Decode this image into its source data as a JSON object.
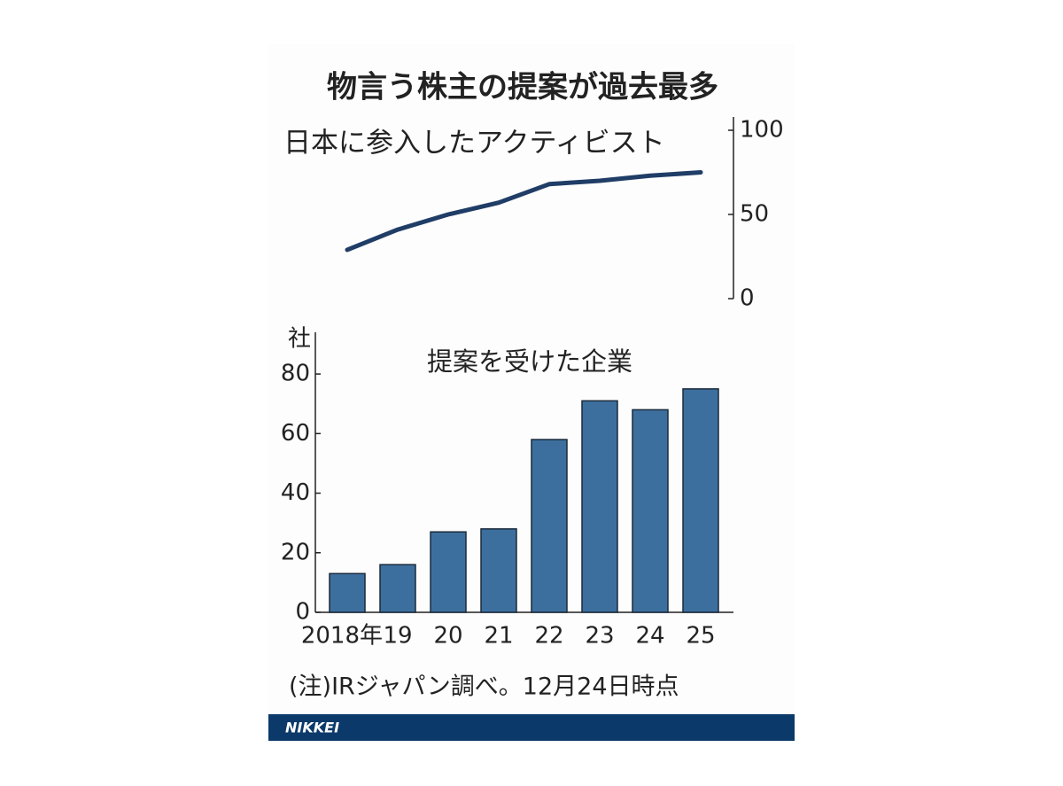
{
  "title": "物言う株主の提案が過去最多",
  "note": "(注)IRジャパン調べ。12月24日時点",
  "footer": "NIKKEI",
  "chart_data": [
    {
      "type": "line",
      "title": "日本に参入したアクティビスト",
      "categories": [
        null,
        null,
        null,
        null,
        null,
        null,
        null,
        null
      ],
      "values": [
        29,
        41,
        50,
        57,
        68,
        70,
        73,
        75
      ],
      "color": "#1f3d66",
      "ylim": [
        0,
        100
      ],
      "yticks": [
        0,
        50,
        100
      ],
      "y_axis_side": "right"
    },
    {
      "type": "bar",
      "title": "提案を受けた企業",
      "y_unit": "社",
      "categories": [
        "2018年",
        "19",
        "20",
        "21",
        "22",
        "23",
        "24",
        "25"
      ],
      "values": [
        13,
        16,
        27,
        28,
        58,
        71,
        68,
        75
      ],
      "color": "#3d6f9e",
      "ylim": [
        0,
        94
      ],
      "yticks": [
        0,
        20,
        40,
        60,
        80
      ]
    }
  ]
}
